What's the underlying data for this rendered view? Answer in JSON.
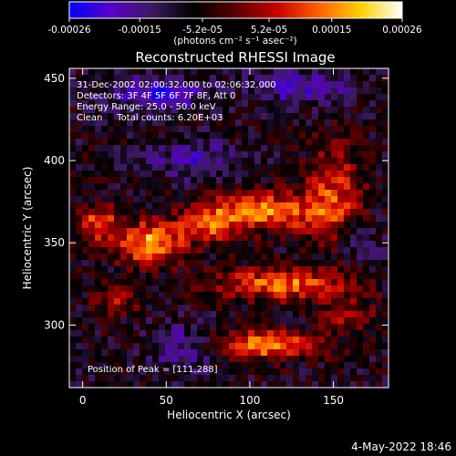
{
  "chart_data": {
    "type": "heatmap",
    "title": "Reconstructed RHESSI Image",
    "xlabel": "Heliocentric X (arcsec)",
    "ylabel": "Heliocentric Y (arcsec)",
    "xlim": [
      -8,
      183
    ],
    "ylim": [
      262,
      456
    ],
    "xticks": [
      "0",
      "50",
      "100",
      "150"
    ],
    "xtick_values": [
      0,
      50,
      100,
      150
    ],
    "yticks": [
      "300",
      "350",
      "400",
      "450"
    ],
    "ytick_values": [
      300,
      350,
      400,
      450
    ],
    "colorbar": {
      "min": -0.00026,
      "max": 0.00026,
      "tick_labels": [
        "-0.00026",
        "-0.00015",
        "-5.2e-05",
        "5.2e-05",
        "0.00015",
        "0.00026"
      ],
      "tick_values": [
        -0.00026,
        -0.00015,
        -5.2e-05,
        5.2e-05,
        0.00015,
        0.00026
      ],
      "unit_label": "(photons cm⁻² s⁻¹ asec⁻²)",
      "colors": [
        "#0000ff",
        "#5a00c8",
        "#3c1a60",
        "#000000",
        "#5a0000",
        "#c80000",
        "#ff6000",
        "#ffd000",
        "#ffffff"
      ]
    },
    "annotations": [
      "31-Dec-2002 02:00:32.000 to 02:06:32.000",
      "Detectors: 3F 4F 5F 6F 7F 8F, Att 0",
      "Energy Range: 25.0 - 50.0 keV",
      "Clean     Total counts: 6.20E+03"
    ],
    "peak_label": "Position of Peak = [111,288]",
    "peak": [
      111,
      288
    ],
    "hot_regions": [
      {
        "x": 110,
        "y": 369,
        "sx": 22,
        "sy": 8,
        "amp": 0.00022
      },
      {
        "x": 40,
        "y": 350,
        "sx": 14,
        "sy": 9,
        "amp": 0.00024
      },
      {
        "x": 10,
        "y": 362,
        "sx": 8,
        "sy": 8,
        "amp": 0.00018
      },
      {
        "x": 75,
        "y": 362,
        "sx": 12,
        "sy": 8,
        "amp": 0.00017
      },
      {
        "x": 150,
        "y": 380,
        "sx": 12,
        "sy": 20,
        "amp": 0.00016
      },
      {
        "x": 120,
        "y": 325,
        "sx": 28,
        "sy": 7,
        "amp": 0.0002
      },
      {
        "x": 110,
        "y": 288,
        "sx": 22,
        "sy": 6,
        "amp": 0.00022
      },
      {
        "x": 160,
        "y": 305,
        "sx": 10,
        "sy": 7,
        "amp": 0.00012
      },
      {
        "x": 20,
        "y": 315,
        "sx": 10,
        "sy": 6,
        "amp": 0.0001
      }
    ],
    "cold_regions": [
      {
        "x": 45,
        "y": 440,
        "sx": 20,
        "sy": 8,
        "amp": -0.00014
      },
      {
        "x": 65,
        "y": 400,
        "sx": 18,
        "sy": 8,
        "amp": -0.0001
      },
      {
        "x": 130,
        "y": 445,
        "sx": 20,
        "sy": 8,
        "amp": -0.00012
      },
      {
        "x": 60,
        "y": 285,
        "sx": 14,
        "sy": 10,
        "amp": -0.00011
      },
      {
        "x": 165,
        "y": 350,
        "sx": 8,
        "sy": 8,
        "amp": -9e-05
      }
    ]
  },
  "footer": {
    "timestamp": "4-May-2022 18:46"
  }
}
